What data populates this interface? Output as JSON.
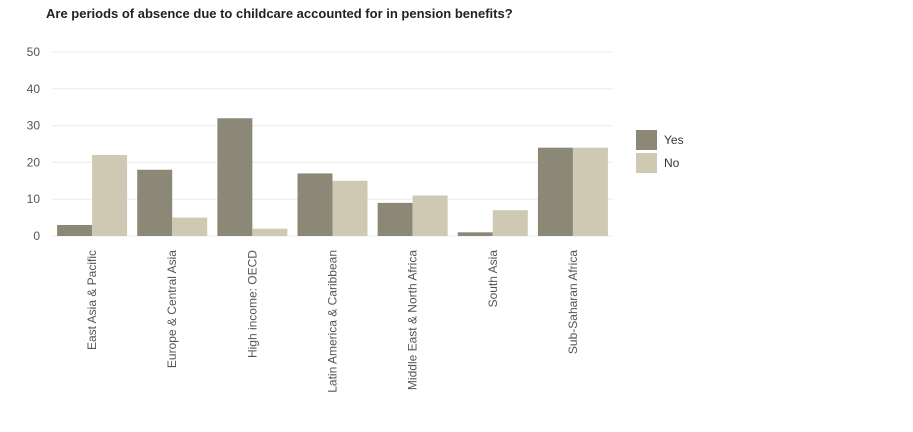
{
  "chart_data": {
    "type": "bar",
    "title": "Are periods of absence due to childcare accounted for in pension benefits?",
    "xlabel": "",
    "ylabel": "",
    "ylim": [
      0,
      50
    ],
    "yticks": [
      0,
      10,
      20,
      30,
      40,
      50
    ],
    "grid": true,
    "legend_position": "right",
    "categories": [
      "East Asia & Pacific",
      "Europe & Central Asia",
      "High income: OECD",
      "Latin America & Caribbean",
      "Middle East & North Africa",
      "South Asia",
      "Sub-Saharan Africa"
    ],
    "series": [
      {
        "name": "Yes",
        "color": "#8c8877",
        "values": [
          3,
          18,
          32,
          17,
          9,
          1,
          24
        ]
      },
      {
        "name": "No",
        "color": "#cfc9b4",
        "values": [
          22,
          5,
          2,
          15,
          11,
          7,
          24
        ]
      }
    ]
  }
}
